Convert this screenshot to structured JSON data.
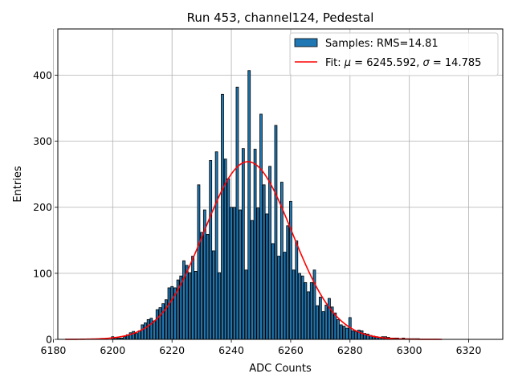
{
  "chart_data": {
    "type": "bar",
    "title": "Run 453, channel124, Pedestal",
    "xlabel": "ADC Counts",
    "ylabel": "Entries",
    "xlim": [
      6181.5,
      6331.5
    ],
    "ylim": [
      0,
      470
    ],
    "xticks": [
      6180,
      6200,
      6220,
      6240,
      6260,
      6280,
      6300,
      6320
    ],
    "yticks": [
      0,
      100,
      200,
      300,
      400
    ],
    "grid": true,
    "legend_position": "top-right",
    "colors": {
      "bars": "#1f77b4",
      "bar_edge": "#000000",
      "fit": "#ff0000",
      "grid": "#b0b0b0"
    },
    "histogram": {
      "name": "Samples: RMS=14.81",
      "bin_width": 1,
      "bins": [
        {
          "x": 6200,
          "y": 4
        },
        {
          "x": 6201,
          "y": 2
        },
        {
          "x": 6202,
          "y": 2
        },
        {
          "x": 6203,
          "y": 2
        },
        {
          "x": 6204,
          "y": 4
        },
        {
          "x": 6205,
          "y": 7
        },
        {
          "x": 6206,
          "y": 10
        },
        {
          "x": 6207,
          "y": 12
        },
        {
          "x": 6208,
          "y": 9
        },
        {
          "x": 6209,
          "y": 13
        },
        {
          "x": 6210,
          "y": 22
        },
        {
          "x": 6211,
          "y": 25
        },
        {
          "x": 6212,
          "y": 30
        },
        {
          "x": 6213,
          "y": 32
        },
        {
          "x": 6214,
          "y": 28
        },
        {
          "x": 6215,
          "y": 45
        },
        {
          "x": 6216,
          "y": 48
        },
        {
          "x": 6217,
          "y": 54
        },
        {
          "x": 6218,
          "y": 60
        },
        {
          "x": 6219,
          "y": 78
        },
        {
          "x": 6220,
          "y": 80
        },
        {
          "x": 6221,
          "y": 78
        },
        {
          "x": 6222,
          "y": 90
        },
        {
          "x": 6223,
          "y": 96
        },
        {
          "x": 6224,
          "y": 119
        },
        {
          "x": 6225,
          "y": 112
        },
        {
          "x": 6226,
          "y": 101
        },
        {
          "x": 6227,
          "y": 126
        },
        {
          "x": 6228,
          "y": 103
        },
        {
          "x": 6229,
          "y": 234
        },
        {
          "x": 6230,
          "y": 162
        },
        {
          "x": 6231,
          "y": 196
        },
        {
          "x": 6232,
          "y": 159
        },
        {
          "x": 6233,
          "y": 271
        },
        {
          "x": 6234,
          "y": 134
        },
        {
          "x": 6235,
          "y": 284
        },
        {
          "x": 6236,
          "y": 101
        },
        {
          "x": 6237,
          "y": 371
        },
        {
          "x": 6238,
          "y": 273
        },
        {
          "x": 6239,
          "y": 243
        },
        {
          "x": 6240,
          "y": 200
        },
        {
          "x": 6241,
          "y": 200
        },
        {
          "x": 6242,
          "y": 382
        },
        {
          "x": 6243,
          "y": 196
        },
        {
          "x": 6244,
          "y": 289
        },
        {
          "x": 6245,
          "y": 105
        },
        {
          "x": 6246,
          "y": 407
        },
        {
          "x": 6247,
          "y": 180
        },
        {
          "x": 6248,
          "y": 288
        },
        {
          "x": 6249,
          "y": 199
        },
        {
          "x": 6250,
          "y": 341
        },
        {
          "x": 6251,
          "y": 234
        },
        {
          "x": 6252,
          "y": 190
        },
        {
          "x": 6253,
          "y": 262
        },
        {
          "x": 6254,
          "y": 145
        },
        {
          "x": 6255,
          "y": 324
        },
        {
          "x": 6256,
          "y": 126
        },
        {
          "x": 6257,
          "y": 238
        },
        {
          "x": 6258,
          "y": 132
        },
        {
          "x": 6259,
          "y": 172
        },
        {
          "x": 6260,
          "y": 209
        },
        {
          "x": 6261,
          "y": 105
        },
        {
          "x": 6262,
          "y": 149
        },
        {
          "x": 6263,
          "y": 100
        },
        {
          "x": 6264,
          "y": 96
        },
        {
          "x": 6265,
          "y": 86
        },
        {
          "x": 6266,
          "y": 72
        },
        {
          "x": 6267,
          "y": 86
        },
        {
          "x": 6268,
          "y": 105
        },
        {
          "x": 6269,
          "y": 51
        },
        {
          "x": 6270,
          "y": 64
        },
        {
          "x": 6271,
          "y": 42
        },
        {
          "x": 6272,
          "y": 52
        },
        {
          "x": 6273,
          "y": 62
        },
        {
          "x": 6274,
          "y": 49
        },
        {
          "x": 6275,
          "y": 40
        },
        {
          "x": 6276,
          "y": 30
        },
        {
          "x": 6277,
          "y": 22
        },
        {
          "x": 6278,
          "y": 20
        },
        {
          "x": 6279,
          "y": 17
        },
        {
          "x": 6280,
          "y": 33
        },
        {
          "x": 6281,
          "y": 13
        },
        {
          "x": 6282,
          "y": 12
        },
        {
          "x": 6283,
          "y": 14
        },
        {
          "x": 6284,
          "y": 13
        },
        {
          "x": 6285,
          "y": 9
        },
        {
          "x": 6286,
          "y": 8
        },
        {
          "x": 6287,
          "y": 6
        },
        {
          "x": 6288,
          "y": 5
        },
        {
          "x": 6289,
          "y": 4
        },
        {
          "x": 6290,
          "y": 3
        },
        {
          "x": 6291,
          "y": 4
        },
        {
          "x": 6292,
          "y": 4
        },
        {
          "x": 6293,
          "y": 3
        },
        {
          "x": 6294,
          "y": 2
        },
        {
          "x": 6295,
          "y": 2
        },
        {
          "x": 6296,
          "y": 2
        },
        {
          "x": 6297,
          "y": 1
        },
        {
          "x": 6298,
          "y": 2
        },
        {
          "x": 6299,
          "y": 1
        },
        {
          "x": 6300,
          "y": 1
        },
        {
          "x": 6301,
          "y": 1
        },
        {
          "x": 6302,
          "y": 1
        },
        {
          "x": 6303,
          "y": 1
        }
      ]
    },
    "fit": {
      "name": "Fit: μ = 6245.592, σ = 14.785",
      "legend_prefix": "Fit: ",
      "mu_symbol": "μ",
      "mu_text": " = 6245.592, ",
      "sigma_symbol": "σ",
      "sigma_text": " = 14.785",
      "mu": 6245.592,
      "sigma": 14.785,
      "amplitude": 269,
      "x_range": [
        6184,
        6311
      ]
    }
  }
}
